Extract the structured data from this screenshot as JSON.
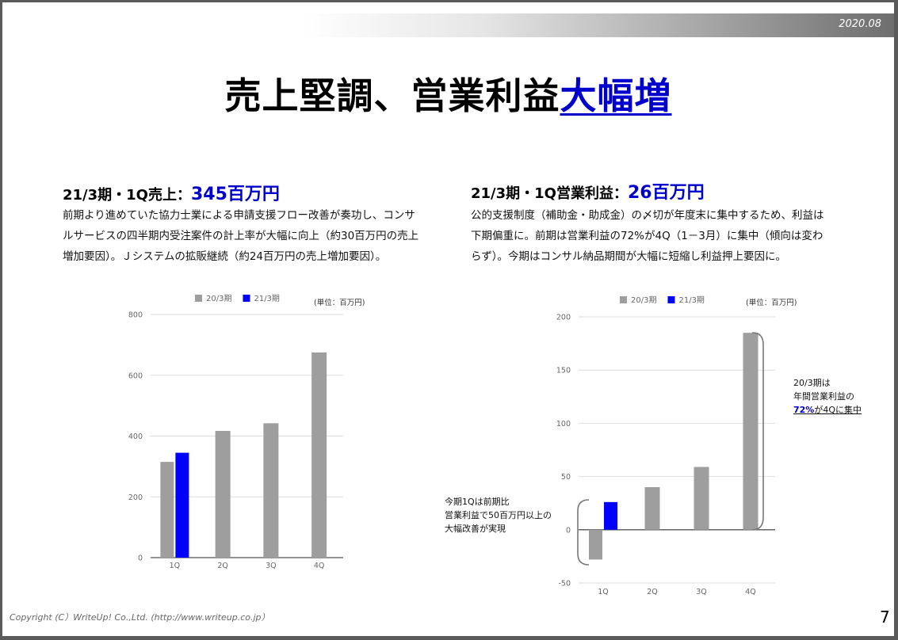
{
  "header": {
    "date": "2020.08"
  },
  "title": {
    "main": "売上堅調、営業利益",
    "highlight": "大幅増"
  },
  "left": {
    "heading": "21/3期・1Q売上：",
    "value": "345百万円",
    "lines": [
      "前期より進めていた協力士業による申請支援フロー改善が奏功し、コンサ",
      "ルサービスの四半期内受注案件の計上率が大幅に向上（約30百万円の売上",
      "増加要因）。Ｊシステムの拡販継続（約24百万円の売上増加要因）。"
    ]
  },
  "right": {
    "heading": "21/3期・1Q営業利益：",
    "value": "26百万円",
    "lines": [
      "公的支援制度（補助金・助成金）の〆切が年度末に集中するため、利益は",
      "下期偏重に。前期は営業利益の72%が4Q（1－3月）に集中（傾向は変わ",
      "らず）。今期はコンサル納品期間が大幅に短縮し利益押上要因に。"
    ]
  },
  "annotations": {
    "note_4q": [
      "20/3期は",
      "年間営業利益の",
      "72%",
      "が4Qに集中"
    ],
    "note_1q": [
      "今期1Qは前期比",
      "営業利益で50百万円以上の",
      "大幅改善が実現"
    ]
  },
  "colors": {
    "prev": "#9e9e9e",
    "curr": "#0000ff",
    "accent": "#0000cc"
  },
  "chart_data": [
    {
      "type": "bar",
      "categories": [
        "1Q",
        "2Q",
        "3Q",
        "4Q"
      ],
      "series": [
        {
          "name": "20/3期",
          "values": [
            315,
            417,
            442,
            675
          ]
        },
        {
          "name": "21/3期",
          "values": [
            345,
            null,
            null,
            null
          ]
        }
      ],
      "ylim": [
        0,
        800
      ],
      "yticks": [
        0,
        200,
        400,
        600,
        800
      ],
      "unit_label": "(単位：百万円)",
      "legend": "top"
    },
    {
      "type": "bar",
      "categories": [
        "1Q",
        "2Q",
        "3Q",
        "4Q"
      ],
      "series": [
        {
          "name": "20/3期",
          "values": [
            -28,
            40,
            59,
            185
          ]
        },
        {
          "name": "21/3期",
          "values": [
            26,
            null,
            null,
            null
          ]
        }
      ],
      "ylim": [
        -50,
        200
      ],
      "yticks": [
        -50,
        0,
        50,
        100,
        150,
        200
      ],
      "unit_label": "(単位：百万円)",
      "legend": "top"
    }
  ],
  "footer": {
    "copyright": "Copyright (C）WriteUp! Co.,Ltd. (http://www.writeup.co.jp）",
    "page": "7"
  }
}
